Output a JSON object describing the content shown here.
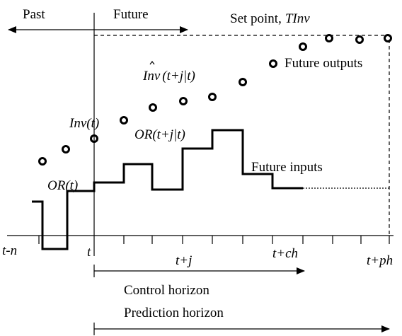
{
  "header": {
    "past": "Past",
    "future": "Future"
  },
  "set_point": {
    "text": "Set point,",
    "symbol": "TInv"
  },
  "outputs": {
    "label": "Future outputs",
    "current": "Inv(t)",
    "predicted": "Inv",
    "predicted_arg": "(t+j|t)"
  },
  "inputs": {
    "label": "Future inputs",
    "current": "OR(t)",
    "predicted": "OR(t+j|t)"
  },
  "axis": {
    "ticks": [
      "t-n",
      "t",
      "t+j",
      "t+ch",
      "t+ph"
    ]
  },
  "horizons": {
    "control": "Control horizon",
    "prediction": "Prediction horizon"
  }
}
